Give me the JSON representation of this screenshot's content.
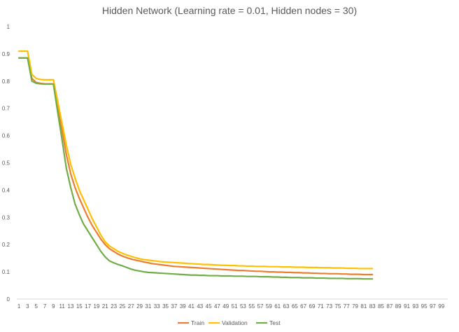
{
  "chart_data": {
    "type": "line",
    "title": "Hidden Network (Learning rate = 0.01, Hidden nodes = 30)",
    "xlabel": "",
    "ylabel": "",
    "x_ticks": [
      1,
      3,
      5,
      7,
      9,
      11,
      13,
      15,
      17,
      19,
      21,
      23,
      25,
      27,
      29,
      31,
      33,
      35,
      37,
      39,
      41,
      43,
      45,
      47,
      49,
      51,
      53,
      55,
      57,
      59,
      61,
      63,
      65,
      67,
      69,
      71,
      73,
      75,
      77,
      79,
      81,
      83,
      85,
      87,
      89,
      91,
      93,
      95,
      97,
      99
    ],
    "x_range": [
      1,
      100
    ],
    "y_ticks": [
      "0",
      "0.1",
      "0.2",
      "0.3",
      "0.4",
      "0.5",
      "0.6",
      "0.7",
      "0.8",
      "0.9",
      "1"
    ],
    "ylim": [
      0,
      1
    ],
    "grid": false,
    "legend_position": "bottom",
    "x": [
      1,
      2,
      3,
      4,
      5,
      6,
      7,
      8,
      9,
      10,
      11,
      12,
      13,
      14,
      15,
      16,
      17,
      18,
      19,
      20,
      21,
      22,
      23,
      24,
      25,
      26,
      27,
      28,
      29,
      30,
      31,
      32,
      33,
      34,
      35,
      36,
      37,
      38,
      39,
      40,
      41,
      42,
      43,
      44,
      45,
      46,
      47,
      48,
      49,
      50,
      51,
      52,
      53,
      54,
      55,
      56,
      57,
      58,
      59,
      60,
      61,
      62,
      63,
      64,
      65,
      66,
      67,
      68,
      69,
      70,
      71,
      72,
      73,
      74,
      75,
      76,
      77,
      78,
      79,
      80,
      81,
      82,
      83
    ],
    "series": [
      {
        "name": "Train",
        "color": "#ed7d31",
        "values": [
          0.885,
          0.885,
          0.885,
          0.81,
          0.795,
          0.792,
          0.79,
          0.79,
          0.79,
          0.7,
          0.62,
          0.53,
          0.46,
          0.41,
          0.37,
          0.335,
          0.3,
          0.27,
          0.245,
          0.22,
          0.2,
          0.185,
          0.175,
          0.165,
          0.158,
          0.152,
          0.147,
          0.143,
          0.14,
          0.136,
          0.133,
          0.13,
          0.128,
          0.126,
          0.124,
          0.122,
          0.12,
          0.119,
          0.118,
          0.117,
          0.116,
          0.115,
          0.114,
          0.113,
          0.112,
          0.111,
          0.11,
          0.109,
          0.108,
          0.107,
          0.106,
          0.105,
          0.105,
          0.104,
          0.103,
          0.102,
          0.102,
          0.101,
          0.1,
          0.1,
          0.099,
          0.099,
          0.098,
          0.098,
          0.097,
          0.097,
          0.096,
          0.096,
          0.095,
          0.095,
          0.094,
          0.094,
          0.093,
          0.093,
          0.093,
          0.092,
          0.092,
          0.091,
          0.091,
          0.091,
          0.09,
          0.09,
          0.09
        ]
      },
      {
        "name": "Validation",
        "color": "#ffc000",
        "values": [
          0.91,
          0.91,
          0.91,
          0.825,
          0.81,
          0.806,
          0.805,
          0.805,
          0.805,
          0.725,
          0.645,
          0.565,
          0.495,
          0.445,
          0.4,
          0.365,
          0.33,
          0.295,
          0.265,
          0.235,
          0.21,
          0.195,
          0.185,
          0.175,
          0.168,
          0.162,
          0.157,
          0.152,
          0.148,
          0.145,
          0.143,
          0.141,
          0.139,
          0.137,
          0.136,
          0.135,
          0.134,
          0.133,
          0.132,
          0.131,
          0.13,
          0.129,
          0.128,
          0.127,
          0.127,
          0.126,
          0.125,
          0.124,
          0.124,
          0.123,
          0.123,
          0.122,
          0.122,
          0.121,
          0.121,
          0.12,
          0.12,
          0.12,
          0.119,
          0.119,
          0.119,
          0.118,
          0.118,
          0.118,
          0.117,
          0.117,
          0.117,
          0.116,
          0.116,
          0.116,
          0.115,
          0.115,
          0.115,
          0.114,
          0.114,
          0.114,
          0.113,
          0.113,
          0.113,
          0.112,
          0.112,
          0.112,
          0.112
        ]
      },
      {
        "name": "Test",
        "color": "#70ad47",
        "values": [
          0.885,
          0.885,
          0.885,
          0.8,
          0.792,
          0.79,
          0.789,
          0.789,
          0.789,
          0.685,
          0.585,
          0.48,
          0.41,
          0.35,
          0.31,
          0.275,
          0.25,
          0.225,
          0.2,
          0.175,
          0.155,
          0.14,
          0.133,
          0.127,
          0.122,
          0.116,
          0.11,
          0.106,
          0.103,
          0.1,
          0.098,
          0.097,
          0.096,
          0.095,
          0.094,
          0.093,
          0.092,
          0.091,
          0.09,
          0.089,
          0.088,
          0.088,
          0.087,
          0.087,
          0.086,
          0.086,
          0.086,
          0.085,
          0.085,
          0.085,
          0.084,
          0.084,
          0.084,
          0.083,
          0.083,
          0.083,
          0.082,
          0.082,
          0.082,
          0.081,
          0.081,
          0.08,
          0.08,
          0.079,
          0.079,
          0.079,
          0.078,
          0.078,
          0.078,
          0.077,
          0.077,
          0.077,
          0.076,
          0.076,
          0.076,
          0.076,
          0.075,
          0.075,
          0.075,
          0.075,
          0.074,
          0.074,
          0.074
        ]
      }
    ]
  }
}
